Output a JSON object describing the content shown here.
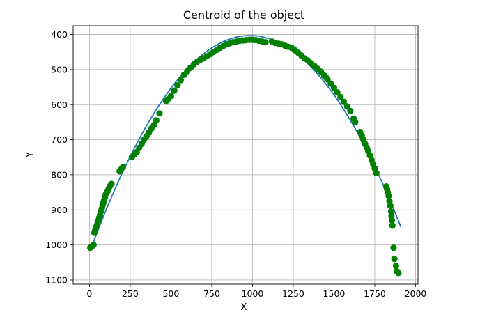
{
  "chart_data": {
    "type": "scatter",
    "title": "Centroid of the object",
    "xlabel": "X",
    "ylabel": "Y",
    "xlim": [
      -100,
      2015
    ],
    "ylim": [
      1112,
      375
    ],
    "y_inverted": true,
    "grid": true,
    "x_ticks": [
      0,
      250,
      500,
      750,
      1000,
      1250,
      1500,
      1750,
      2000
    ],
    "x_tick_labels": [
      "0",
      "250",
      "500",
      "750",
      "1000",
      "1250",
      "1500",
      "1750",
      "2000"
    ],
    "y_ticks": [
      400,
      500,
      600,
      700,
      800,
      900,
      1000,
      1100
    ],
    "y_tick_labels": [
      "400",
      "500",
      "600",
      "700",
      "800",
      "900",
      "1000",
      "1100"
    ],
    "colors": {
      "points": "#008000",
      "fit_line": "#1f77b4",
      "grid": "#b0b0b0",
      "axes": "#000000"
    },
    "series": [
      {
        "kind": "scatter",
        "points": [
          [
            5,
            1008
          ],
          [
            10,
            1006
          ],
          [
            18,
            1003
          ],
          [
            25,
            1000
          ],
          [
            30,
            965
          ],
          [
            35,
            958
          ],
          [
            40,
            950
          ],
          [
            45,
            945
          ],
          [
            50,
            937
          ],
          [
            55,
            930
          ],
          [
            60,
            922
          ],
          [
            65,
            915
          ],
          [
            70,
            905
          ],
          [
            75,
            897
          ],
          [
            80,
            888
          ],
          [
            85,
            880
          ],
          [
            90,
            872
          ],
          [
            95,
            864
          ],
          [
            100,
            856
          ],
          [
            110,
            848
          ],
          [
            118,
            840
          ],
          [
            125,
            832
          ],
          [
            135,
            826
          ],
          [
            185,
            790
          ],
          [
            195,
            784
          ],
          [
            205,
            778
          ],
          [
            260,
            750
          ],
          [
            275,
            742
          ],
          [
            290,
            735
          ],
          [
            305,
            723
          ],
          [
            320,
            712
          ],
          [
            335,
            700
          ],
          [
            350,
            690
          ],
          [
            365,
            680
          ],
          [
            380,
            668
          ],
          [
            395,
            658
          ],
          [
            410,
            645
          ],
          [
            430,
            625
          ],
          [
            470,
            590
          ],
          [
            480,
            585
          ],
          [
            500,
            575
          ],
          [
            520,
            560
          ],
          [
            540,
            545
          ],
          [
            560,
            530
          ],
          [
            580,
            515
          ],
          [
            600,
            505
          ],
          [
            620,
            495
          ],
          [
            640,
            485
          ],
          [
            660,
            478
          ],
          [
            680,
            472
          ],
          [
            700,
            468
          ],
          [
            720,
            462
          ],
          [
            740,
            456
          ],
          [
            760,
            450
          ],
          [
            780,
            444
          ],
          [
            800,
            438
          ],
          [
            820,
            433
          ],
          [
            840,
            428
          ],
          [
            860,
            425
          ],
          [
            880,
            422
          ],
          [
            900,
            420
          ],
          [
            920,
            418
          ],
          [
            940,
            417
          ],
          [
            960,
            416
          ],
          [
            980,
            415
          ],
          [
            1000,
            415
          ],
          [
            1020,
            416
          ],
          [
            1040,
            418
          ],
          [
            1060,
            420
          ],
          [
            1080,
            422
          ],
          [
            1120,
            420
          ],
          [
            1140,
            424
          ],
          [
            1160,
            426
          ],
          [
            1180,
            428
          ],
          [
            1200,
            432
          ],
          [
            1220,
            435
          ],
          [
            1240,
            438
          ],
          [
            1260,
            445
          ],
          [
            1280,
            452
          ],
          [
            1300,
            460
          ],
          [
            1320,
            468
          ],
          [
            1340,
            474
          ],
          [
            1360,
            482
          ],
          [
            1380,
            490
          ],
          [
            1400,
            498
          ],
          [
            1420,
            506
          ],
          [
            1440,
            517
          ],
          [
            1450,
            522
          ],
          [
            1460,
            528
          ],
          [
            1480,
            540
          ],
          [
            1500,
            552
          ],
          [
            1520,
            565
          ],
          [
            1540,
            578
          ],
          [
            1560,
            592
          ],
          [
            1580,
            605
          ],
          [
            1600,
            618
          ],
          [
            1620,
            640
          ],
          [
            1630,
            650
          ],
          [
            1660,
            678
          ],
          [
            1670,
            688
          ],
          [
            1680,
            700
          ],
          [
            1690,
            712
          ],
          [
            1700,
            722
          ],
          [
            1710,
            732
          ],
          [
            1720,
            745
          ],
          [
            1730,
            758
          ],
          [
            1740,
            770
          ],
          [
            1750,
            782
          ],
          [
            1760,
            795
          ],
          [
            1820,
            833
          ],
          [
            1825,
            840
          ],
          [
            1830,
            850
          ],
          [
            1835,
            860
          ],
          [
            1840,
            875
          ],
          [
            1845,
            888
          ],
          [
            1850,
            905
          ],
          [
            1852,
            918
          ],
          [
            1855,
            930
          ],
          [
            1858,
            945
          ],
          [
            1865,
            1008
          ],
          [
            1870,
            1040
          ],
          [
            1880,
            1060
          ],
          [
            1885,
            1075
          ],
          [
            1895,
            1080
          ]
        ]
      },
      {
        "kind": "fit_line",
        "x_start": 20,
        "x_end": 1910,
        "vertex_x": 985,
        "vertex_y": 403,
        "curvature": 0.000638
      }
    ]
  }
}
